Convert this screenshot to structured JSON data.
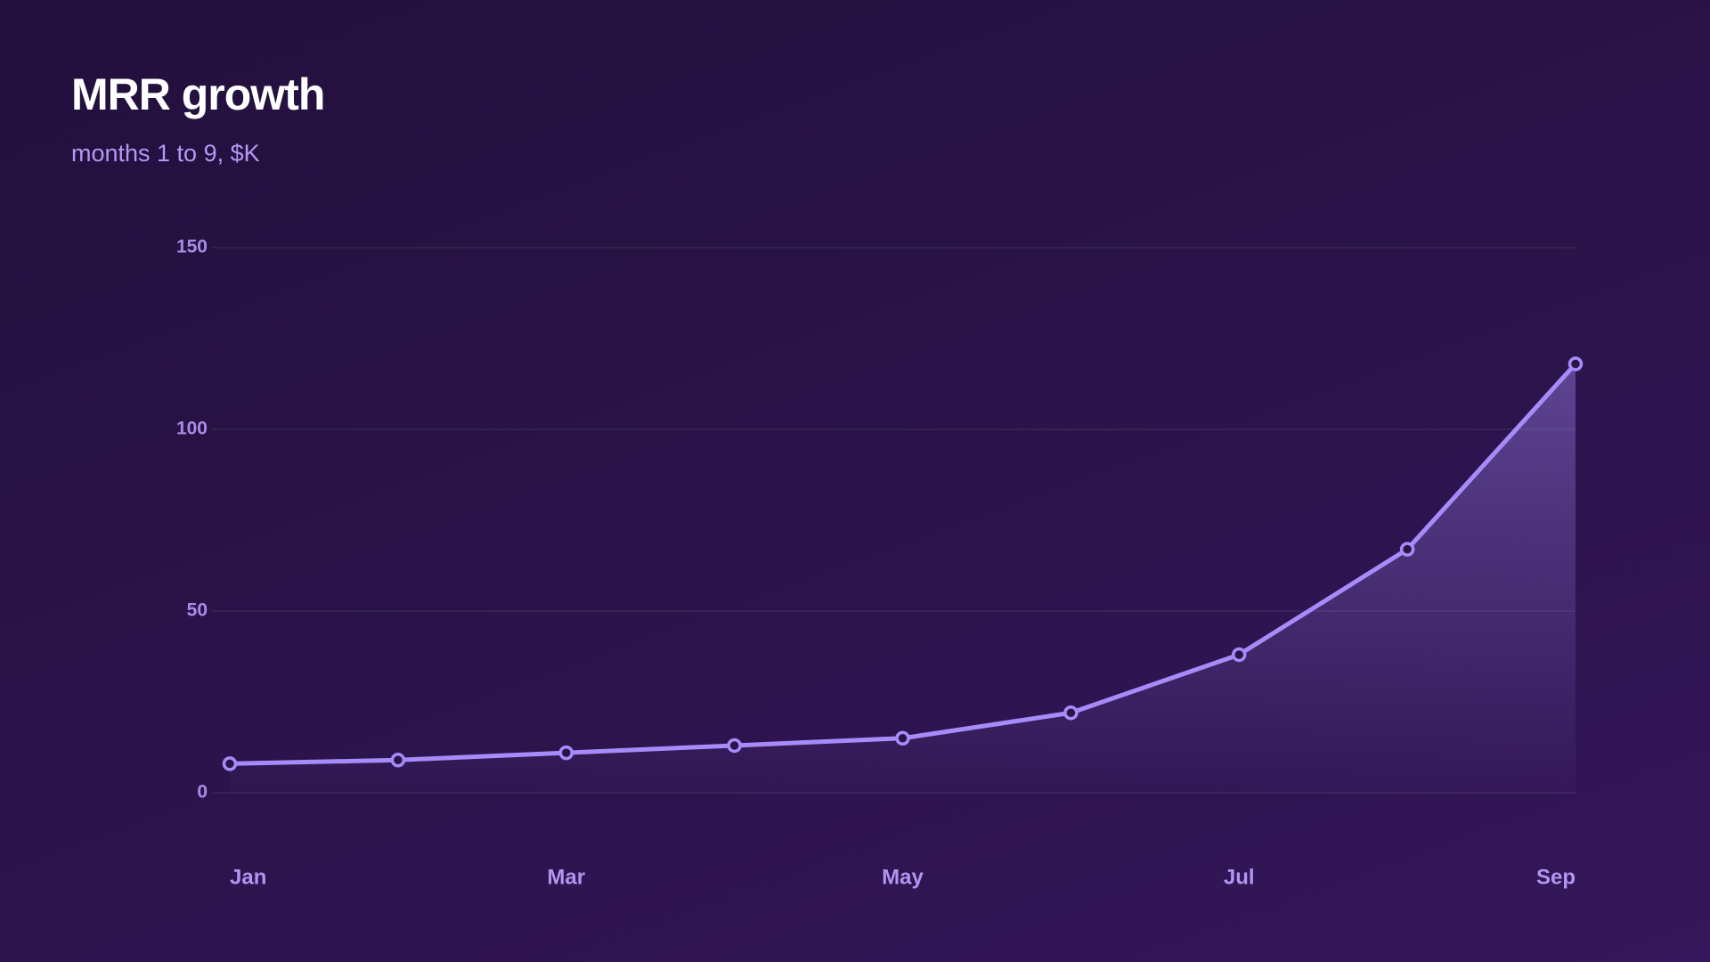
{
  "chart_data": {
    "type": "line",
    "title": "MRR growth",
    "subtitle": "months 1 to 9, $K",
    "categories": [
      "Jan",
      null,
      "Mar",
      null,
      "May",
      null,
      "Jul",
      null,
      "Sep"
    ],
    "series": [
      {
        "name": "MRR",
        "color": "#a78bfa",
        "values": [
          8,
          9,
          11,
          13,
          15,
          22,
          38,
          67,
          118
        ]
      }
    ],
    "ylim": [
      0,
      150
    ],
    "yticks": [
      0,
      50,
      100,
      150
    ],
    "grid": true,
    "area": true
  }
}
